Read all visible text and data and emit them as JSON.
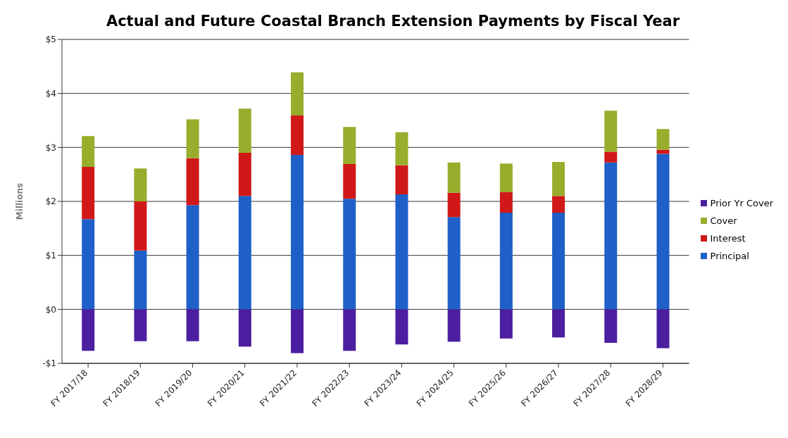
{
  "chart_data": {
    "type": "bar",
    "title": "Actual and Future Coastal Branch Extension Payments by Fiscal Year",
    "ylabel": "Millions",
    "categories": [
      "FY 2017/18",
      "FY 2018/19",
      "FY 2019/20",
      "FY 2020/21",
      "FY 2021/22",
      "FY 2022/23",
      "FY 2023/24",
      "FY 2024/25",
      "FY 2025/26",
      "FY 2026/27",
      "FY 2027/28",
      "FY 2028/29"
    ],
    "stacked": true,
    "series": [
      {
        "name": "Principal",
        "color": "#1f5fc8",
        "values": [
          1.67,
          1.09,
          1.93,
          2.1,
          2.86,
          2.05,
          2.13,
          1.71,
          1.79,
          1.79,
          2.72,
          2.88
        ]
      },
      {
        "name": "Interest",
        "color": "#d01818",
        "values": [
          0.97,
          0.91,
          0.87,
          0.8,
          0.73,
          0.64,
          0.54,
          0.45,
          0.38,
          0.31,
          0.2,
          0.08
        ]
      },
      {
        "name": "Cover",
        "color": "#99ac2c",
        "values": [
          0.57,
          0.61,
          0.72,
          0.82,
          0.8,
          0.69,
          0.61,
          0.56,
          0.53,
          0.63,
          0.76,
          0.38
        ]
      },
      {
        "name": "Prior Yr Cover",
        "color": "#4b1fa0",
        "values": [
          -0.77,
          -0.59,
          -0.59,
          -0.69,
          -0.81,
          -0.77,
          -0.65,
          -0.6,
          -0.54,
          -0.52,
          -0.62,
          -0.72
        ]
      }
    ],
    "ylim": [
      -1,
      5
    ],
    "yticks": [
      {
        "value": -1,
        "label": "-$1"
      },
      {
        "value": 0,
        "label": "$0"
      },
      {
        "value": 1,
        "label": "$1"
      },
      {
        "value": 2,
        "label": "$2"
      },
      {
        "value": 3,
        "label": "$3"
      },
      {
        "value": 4,
        "label": "$4"
      },
      {
        "value": 5,
        "label": "$5"
      }
    ],
    "grid": "y",
    "legend": "right"
  }
}
